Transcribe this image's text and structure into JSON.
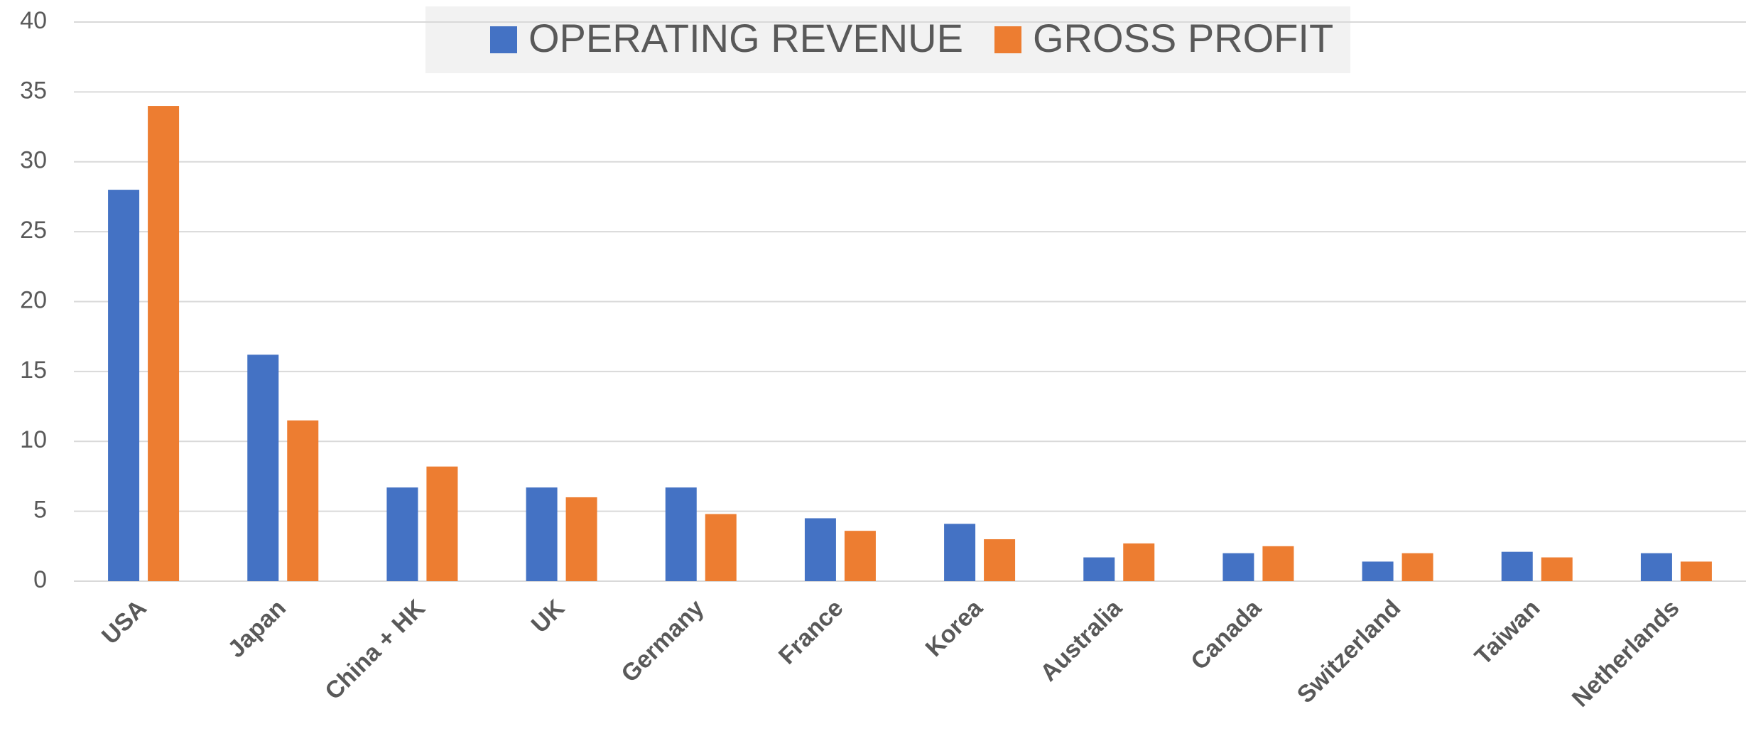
{
  "chart_data": {
    "type": "bar",
    "categories": [
      "USA",
      "Japan",
      "China + HK",
      "UK",
      "Germany",
      "France",
      "Korea",
      "Australia",
      "Canada",
      "Switzerland",
      "Taiwan",
      "Netherlands"
    ],
    "series": [
      {
        "name": "OPERATING REVENUE",
        "color": "#4472c4",
        "values": [
          28,
          16.2,
          6.7,
          6.7,
          6.7,
          4.5,
          4.1,
          1.7,
          2.0,
          1.4,
          2.1,
          2.0
        ]
      },
      {
        "name": "GROSS PROFIT",
        "color": "#ed7d31",
        "values": [
          34,
          11.5,
          8.2,
          6.0,
          4.8,
          3.6,
          3.0,
          2.7,
          2.5,
          2.0,
          1.7,
          1.4
        ]
      }
    ],
    "ylim": [
      0,
      40
    ],
    "yticks": [
      0,
      5,
      10,
      15,
      20,
      25,
      30,
      35,
      40
    ],
    "grid": true,
    "legend": "top"
  }
}
